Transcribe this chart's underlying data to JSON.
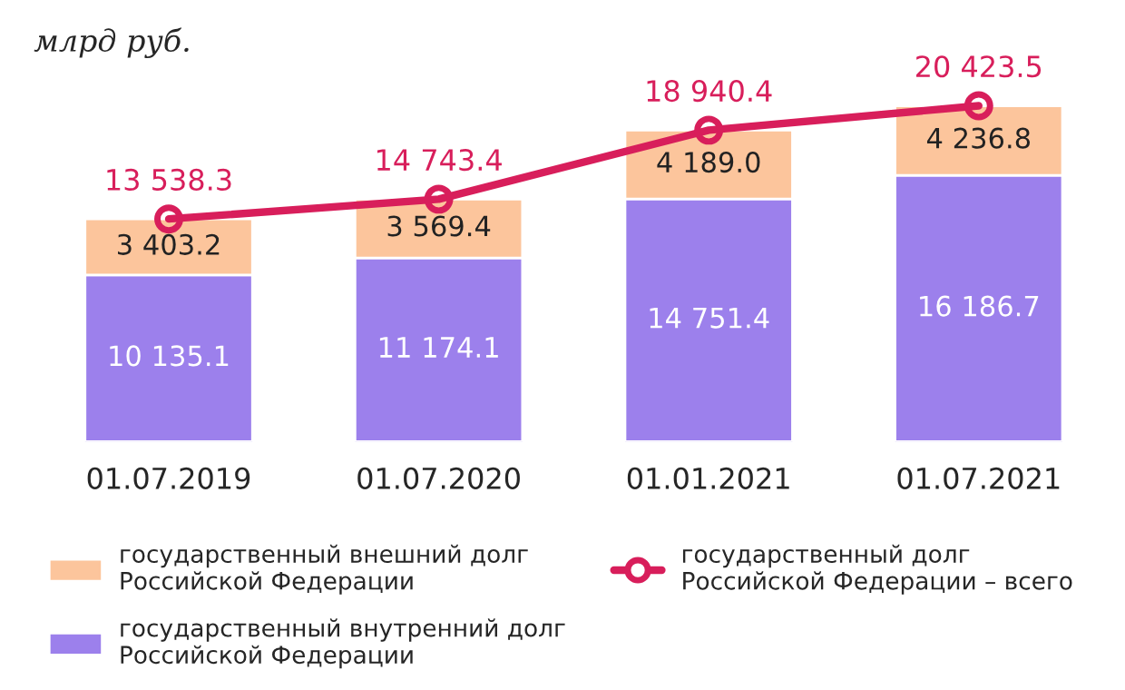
{
  "chart_data": {
    "type": "bar",
    "stacked": true,
    "title": "млрд руб.",
    "categories": [
      "01.07.2019",
      "01.07.2020",
      "01.01.2021",
      "01.07.2021"
    ],
    "series": [
      {
        "name": "государственный внутренний долг Российской Федерации",
        "color": "#9c80ec",
        "values": [
          10135.1,
          11174.1,
          14751.4,
          16186.7
        ],
        "value_labels": [
          "10 135.1",
          "11 174.1",
          "14 751.4",
          "16 186.7"
        ]
      },
      {
        "name": "государственный внешний долг Российской Федерации",
        "color": "#fcc59c",
        "values": [
          3403.2,
          3569.4,
          4189.0,
          4236.8
        ],
        "value_labels": [
          "3 403.2",
          "3 569.4",
          "4 189.0",
          "4 236.8"
        ]
      },
      {
        "name": "государственный долг Российской Федерации – всего",
        "type": "line",
        "color": "#d81e5b",
        "marker": "circle",
        "values": [
          13538.3,
          14743.4,
          18940.4,
          20423.5
        ],
        "value_labels": [
          "13 538.3",
          "14 743.4",
          "18 940.4",
          "20 423.5"
        ]
      }
    ],
    "legend": "bottom",
    "grid": false,
    "tick_labels": "x"
  }
}
